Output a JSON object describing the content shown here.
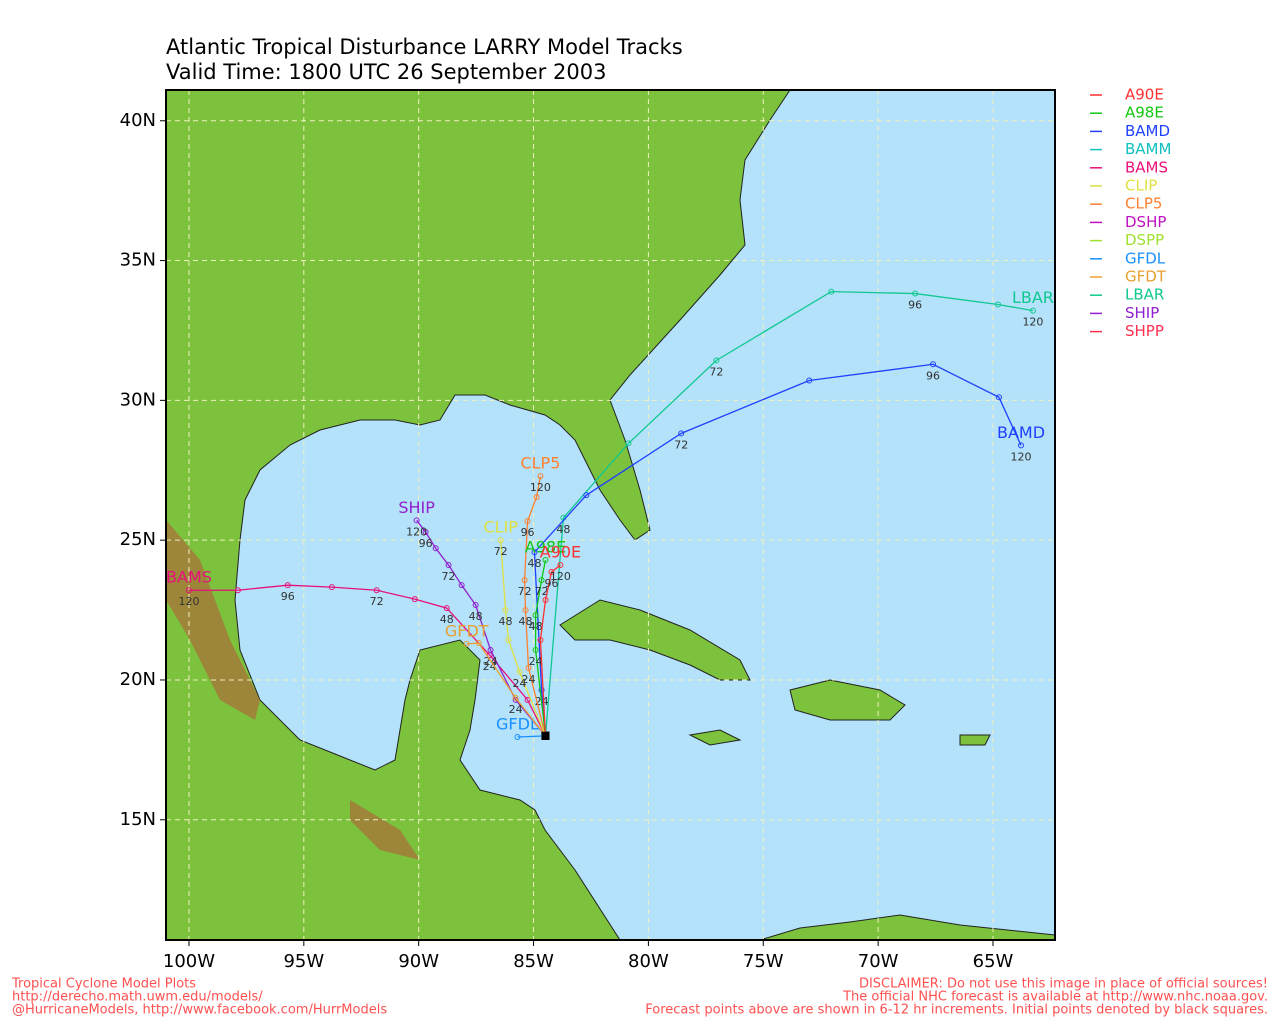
{
  "header": {
    "title": "Atlantic Tropical Disturbance LARRY Model Tracks",
    "subtitle": "Valid Time: 1800 UTC 26 September 2003"
  },
  "map": {
    "xlim": [
      -101,
      -62.3
    ],
    "ylim": [
      10.7,
      41.1
    ],
    "xticks": [
      {
        "value": -100,
        "label": "100W"
      },
      {
        "value": -95,
        "label": "95W"
      },
      {
        "value": -90,
        "label": "90W"
      },
      {
        "value": -85,
        "label": "85W"
      },
      {
        "value": -80,
        "label": "80W"
      },
      {
        "value": -75,
        "label": "75W"
      },
      {
        "value": -70,
        "label": "70W"
      },
      {
        "value": -65,
        "label": "65W"
      }
    ],
    "yticks": [
      {
        "value": 15,
        "label": "15N"
      },
      {
        "value": 20,
        "label": "20N"
      },
      {
        "value": 25,
        "label": "25N"
      },
      {
        "value": 30,
        "label": "30N"
      },
      {
        "value": 35,
        "label": "35N"
      },
      {
        "value": 40,
        "label": "40N"
      }
    ],
    "grid": true,
    "legend": [
      {
        "name": "A90E",
        "color": "#ff3030"
      },
      {
        "name": "A98E",
        "color": "#10c810"
      },
      {
        "name": "BAMD",
        "color": "#2040ff"
      },
      {
        "name": "BAMM",
        "color": "#10c0c0"
      },
      {
        "name": "BAMS",
        "color": "#e8107a"
      },
      {
        "name": "CLIP",
        "color": "#e0e040"
      },
      {
        "name": "CLP5",
        "color": "#ff8030"
      },
      {
        "name": "DSHP",
        "color": "#c010c0"
      },
      {
        "name": "DSPP",
        "color": "#a0e030"
      },
      {
        "name": "GFDL",
        "color": "#1890ff"
      },
      {
        "name": "GFDT",
        "color": "#e8a030"
      },
      {
        "name": "LBAR",
        "color": "#10c890"
      },
      {
        "name": "SHIP",
        "color": "#9020d0"
      },
      {
        "name": "SHPP",
        "color": "#ff3050"
      }
    ],
    "tracks": [
      {
        "label": "LBAR",
        "color": "#10c890",
        "lon": [
          -84.48,
          -83.7,
          -80.87,
          -77.04,
          -72.04,
          -68.39,
          -64.78,
          -63.26
        ],
        "lat": [
          18.0,
          25.8,
          28.46,
          31.43,
          33.89,
          33.82,
          33.43,
          33.21
        ],
        "hours": [
          null,
          48,
          null,
          72,
          null,
          96,
          null,
          120
        ]
      },
      {
        "label": "BAMD",
        "color": "#2040ff",
        "lon": [
          -84.48,
          -84.65,
          -84.96,
          -82.7,
          -78.57,
          -73.0,
          -67.61,
          -64.74,
          -63.78
        ],
        "lat": [
          18.0,
          19.64,
          24.57,
          26.61,
          28.82,
          30.71,
          31.29,
          30.11,
          28.39
        ],
        "hours": [
          null,
          24,
          48,
          null,
          72,
          null,
          96,
          null,
          120
        ]
      },
      {
        "label": "BAMS",
        "color": "#e8107a",
        "lon": [
          -84.48,
          -85.26,
          -86.91,
          -88.78,
          -90.17,
          -91.83,
          -93.78,
          -95.7,
          -97.87,
          -100.0
        ],
        "lat": [
          18.0,
          19.29,
          20.89,
          22.57,
          22.89,
          23.21,
          23.32,
          23.39,
          23.21,
          23.21
        ],
        "hours": [
          null,
          null,
          24,
          48,
          null,
          72,
          null,
          96,
          null,
          120
        ]
      },
      {
        "label": "SHIP",
        "color": "#9020d0",
        "lon": [
          -84.48,
          -85.78,
          -86.87,
          -87.52,
          -88.13,
          -88.7,
          -89.26,
          -89.7,
          -90.09
        ],
        "lat": [
          18.0,
          19.29,
          21.07,
          22.68,
          23.39,
          24.11,
          24.71,
          25.29,
          25.71
        ],
        "hours": [
          null,
          null,
          24,
          48,
          null,
          72,
          null,
          96,
          120
        ]
      },
      {
        "label": "CLP5",
        "color": "#ff8030",
        "lon": [
          -84.48,
          -85.22,
          -85.35,
          -85.39,
          -85.26,
          -84.87,
          -84.7
        ],
        "lat": [
          18.0,
          20.43,
          22.5,
          23.57,
          25.68,
          26.54,
          27.29
        ],
        "hours": [
          null,
          24,
          48,
          72,
          96,
          null,
          120
        ]
      },
      {
        "label": "CLIP",
        "color": "#e0e040",
        "lon": [
          -84.48,
          -85.61,
          -86.09,
          -86.22,
          -86.43
        ],
        "lat": [
          18.0,
          20.29,
          21.43,
          22.5,
          25.0
        ],
        "hours": [
          null,
          24,
          null,
          48,
          72
        ]
      },
      {
        "label": "GFDL",
        "color": "#1890ff",
        "lon": [
          -84.48,
          -85.7
        ],
        "lat": [
          18.0,
          17.96
        ],
        "hours": [
          null,
          null
        ]
      },
      {
        "label": "GFDT",
        "color": "#e8a030",
        "lon": [
          -84.48,
          -85.78,
          -87.39,
          -87.91
        ],
        "lat": [
          18.0,
          19.36,
          21.32,
          21.29
        ],
        "hours": [
          null,
          24,
          null,
          null
        ]
      },
      {
        "label": "A98E",
        "color": "#10c810",
        "lon": [
          -84.48,
          -84.91,
          -84.91,
          -84.65,
          -84.48
        ],
        "lat": [
          18.0,
          21.07,
          22.32,
          23.57,
          24.29
        ],
        "hours": [
          null,
          24,
          48,
          72,
          null
        ]
      },
      {
        "label": "A90E",
        "color": "#ff3030",
        "lon": [
          -84.48,
          -84.7,
          -84.48,
          -84.22,
          -83.83
        ],
        "lat": [
          18.0,
          21.43,
          22.86,
          23.86,
          24.11
        ],
        "hours": [
          null,
          null,
          null,
          96,
          120
        ]
      }
    ]
  },
  "footer": {
    "left": [
      "Tropical Cyclone Model Plots",
      "http://derecho.math.uwm.edu/models/",
      "@HurricaneModels, http://www.facebook.com/HurrModels"
    ],
    "right": [
      "DISCLAIMER: Do not use this image in place of official sources!",
      "The official NHC forecast is available at http://www.nhc.noaa.gov.",
      "Forecast points above are shown in 6-12 hr increments. Initial points denoted by black squares."
    ]
  }
}
